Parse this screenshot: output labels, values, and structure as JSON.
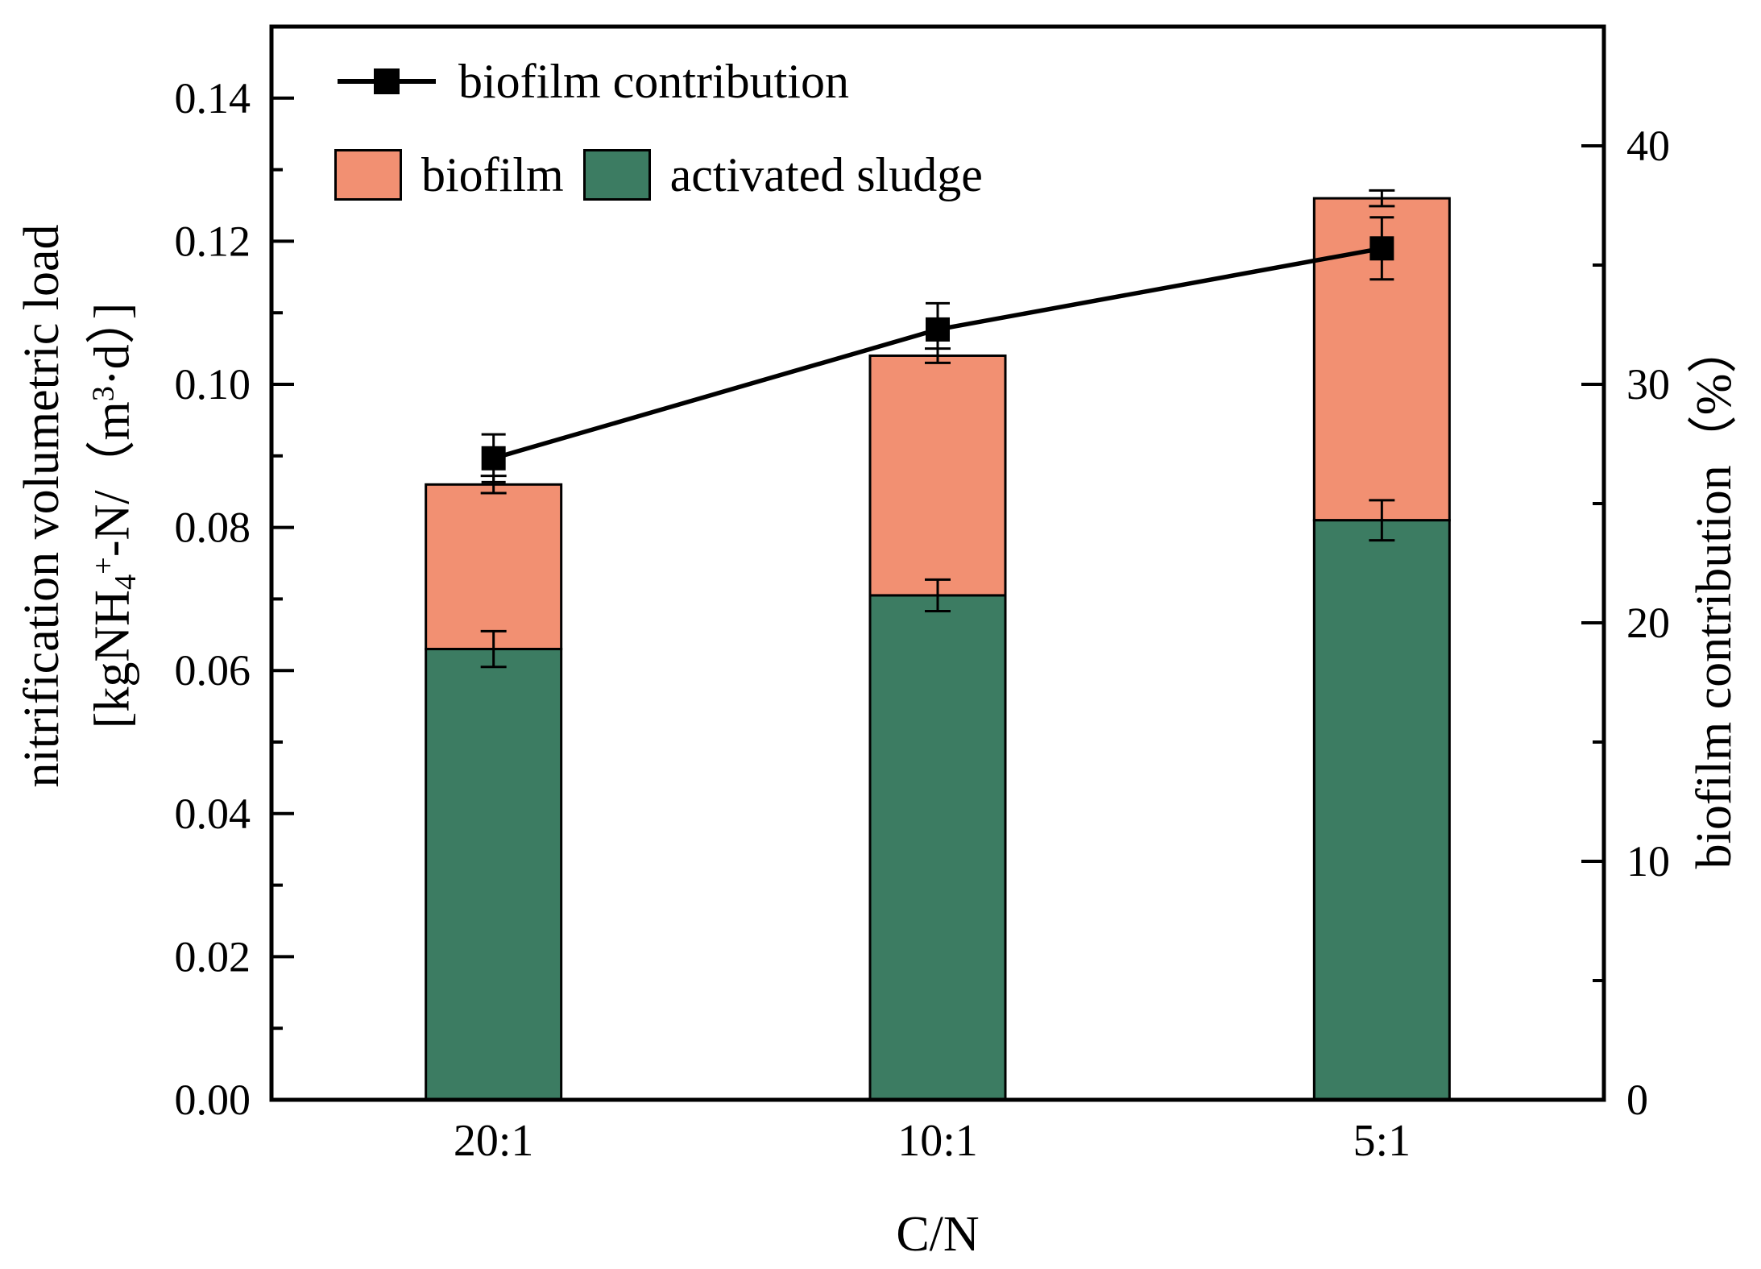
{
  "chart_data": {
    "type": "bar",
    "subtype": "stacked-bar-with-line-overlay",
    "categories": [
      "20:1",
      "10:1",
      "5:1"
    ],
    "series": [
      {
        "name": "activated sludge",
        "type": "bar-stack-bottom",
        "axis": "left",
        "color": "#3C7C62",
        "values": [
          0.063,
          0.0705,
          0.081
        ],
        "errors": [
          0.0025,
          0.0022,
          0.0028
        ]
      },
      {
        "name": "biofilm",
        "type": "bar-stack-top",
        "axis": "left",
        "color": "#F29072",
        "values": [
          0.023,
          0.0335,
          0.045
        ],
        "stack_total_errors": [
          0.0012,
          0.001,
          0.0011
        ]
      },
      {
        "name": "biofilm contribution",
        "type": "line",
        "axis": "right",
        "color": "#000000",
        "marker": "filled-square",
        "values": [
          26.9,
          32.3,
          35.7
        ],
        "errors": [
          1.0,
          1.1,
          1.3
        ]
      }
    ],
    "stack_totals": [
      0.086,
      0.104,
      0.126
    ],
    "xlabel": "C/N",
    "left_axis": {
      "min": 0,
      "max": 0.15,
      "major_tick_labels": [
        "0.00",
        "0.02",
        "0.04",
        "0.06",
        "0.08",
        "0.10",
        "0.12",
        "0.14"
      ],
      "major_step": 0.02,
      "minor_step": 0.01
    },
    "right_axis": {
      "min": 0,
      "max": 45,
      "major_tick_labels": [
        "0",
        "10",
        "20",
        "30",
        "40"
      ],
      "major_step": 10,
      "minor_step": 5
    },
    "grid": "off",
    "legend_position": "inside-top-left",
    "axis_color": "#000000"
  },
  "legend": {
    "items": [
      {
        "label": "biofilm contribution"
      },
      {
        "label": "biofilm"
      },
      {
        "label": "activated sludge"
      }
    ]
  },
  "titles": {
    "x_axis": "C/N",
    "left_axis_line1": "nitrification volumetric load",
    "left_axis_line2_prefix": "[kgNH",
    "left_axis_line2_sub": "4",
    "left_axis_line2_sup": "+",
    "left_axis_line2_mid": "-N/（m",
    "left_axis_line2_sup2": "3",
    "left_axis_line2_suffix": "·d）]",
    "right_axis": "biofilm contribution（%）"
  }
}
